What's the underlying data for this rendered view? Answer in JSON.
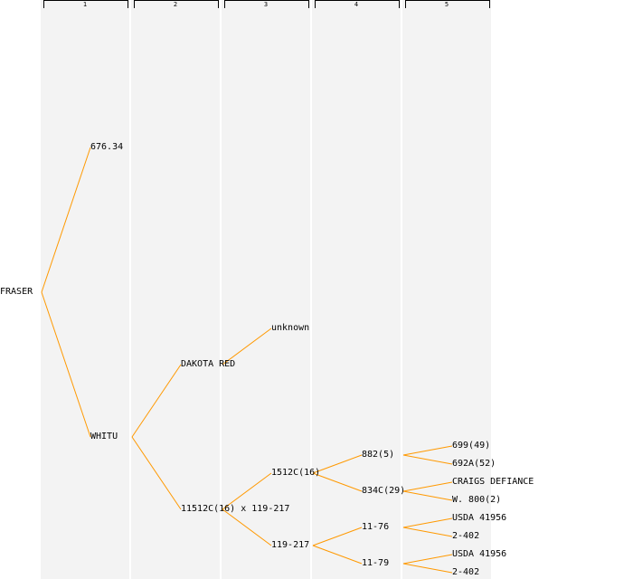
{
  "columns": [
    "1",
    "2",
    "3",
    "4",
    "5"
  ],
  "colors": {
    "edge": "#ff9900",
    "column_fill": "#f3f3f3",
    "background": "#ffffff"
  },
  "tree": {
    "label": "FRASER",
    "children": [
      {
        "label": "676.34"
      },
      {
        "label": "WHITU",
        "children": [
          {
            "label": "DAKOTA RED",
            "children": [
              {
                "label": "unknown"
              }
            ]
          },
          {
            "label": "11512C(16) x 119-217",
            "children": [
              {
                "label": "1512C(16)",
                "children": [
                  {
                    "label": "882(5)",
                    "children": [
                      {
                        "label": "699(49)"
                      },
                      {
                        "label": "692A(52)"
                      }
                    ]
                  },
                  {
                    "label": "834C(29)",
                    "children": [
                      {
                        "label": "CRAIGS DEFIANCE"
                      },
                      {
                        "label": "W. 800(2)"
                      }
                    ]
                  }
                ]
              },
              {
                "label": "119-217",
                "children": [
                  {
                    "label": "11-76",
                    "children": [
                      {
                        "label": "USDA 41956"
                      },
                      {
                        "label": "2-402"
                      }
                    ]
                  },
                  {
                    "label": "11-79",
                    "children": [
                      {
                        "label": "USDA 41956"
                      },
                      {
                        "label": "2-402"
                      }
                    ]
                  }
                ]
              }
            ]
          }
        ]
      }
    ]
  }
}
